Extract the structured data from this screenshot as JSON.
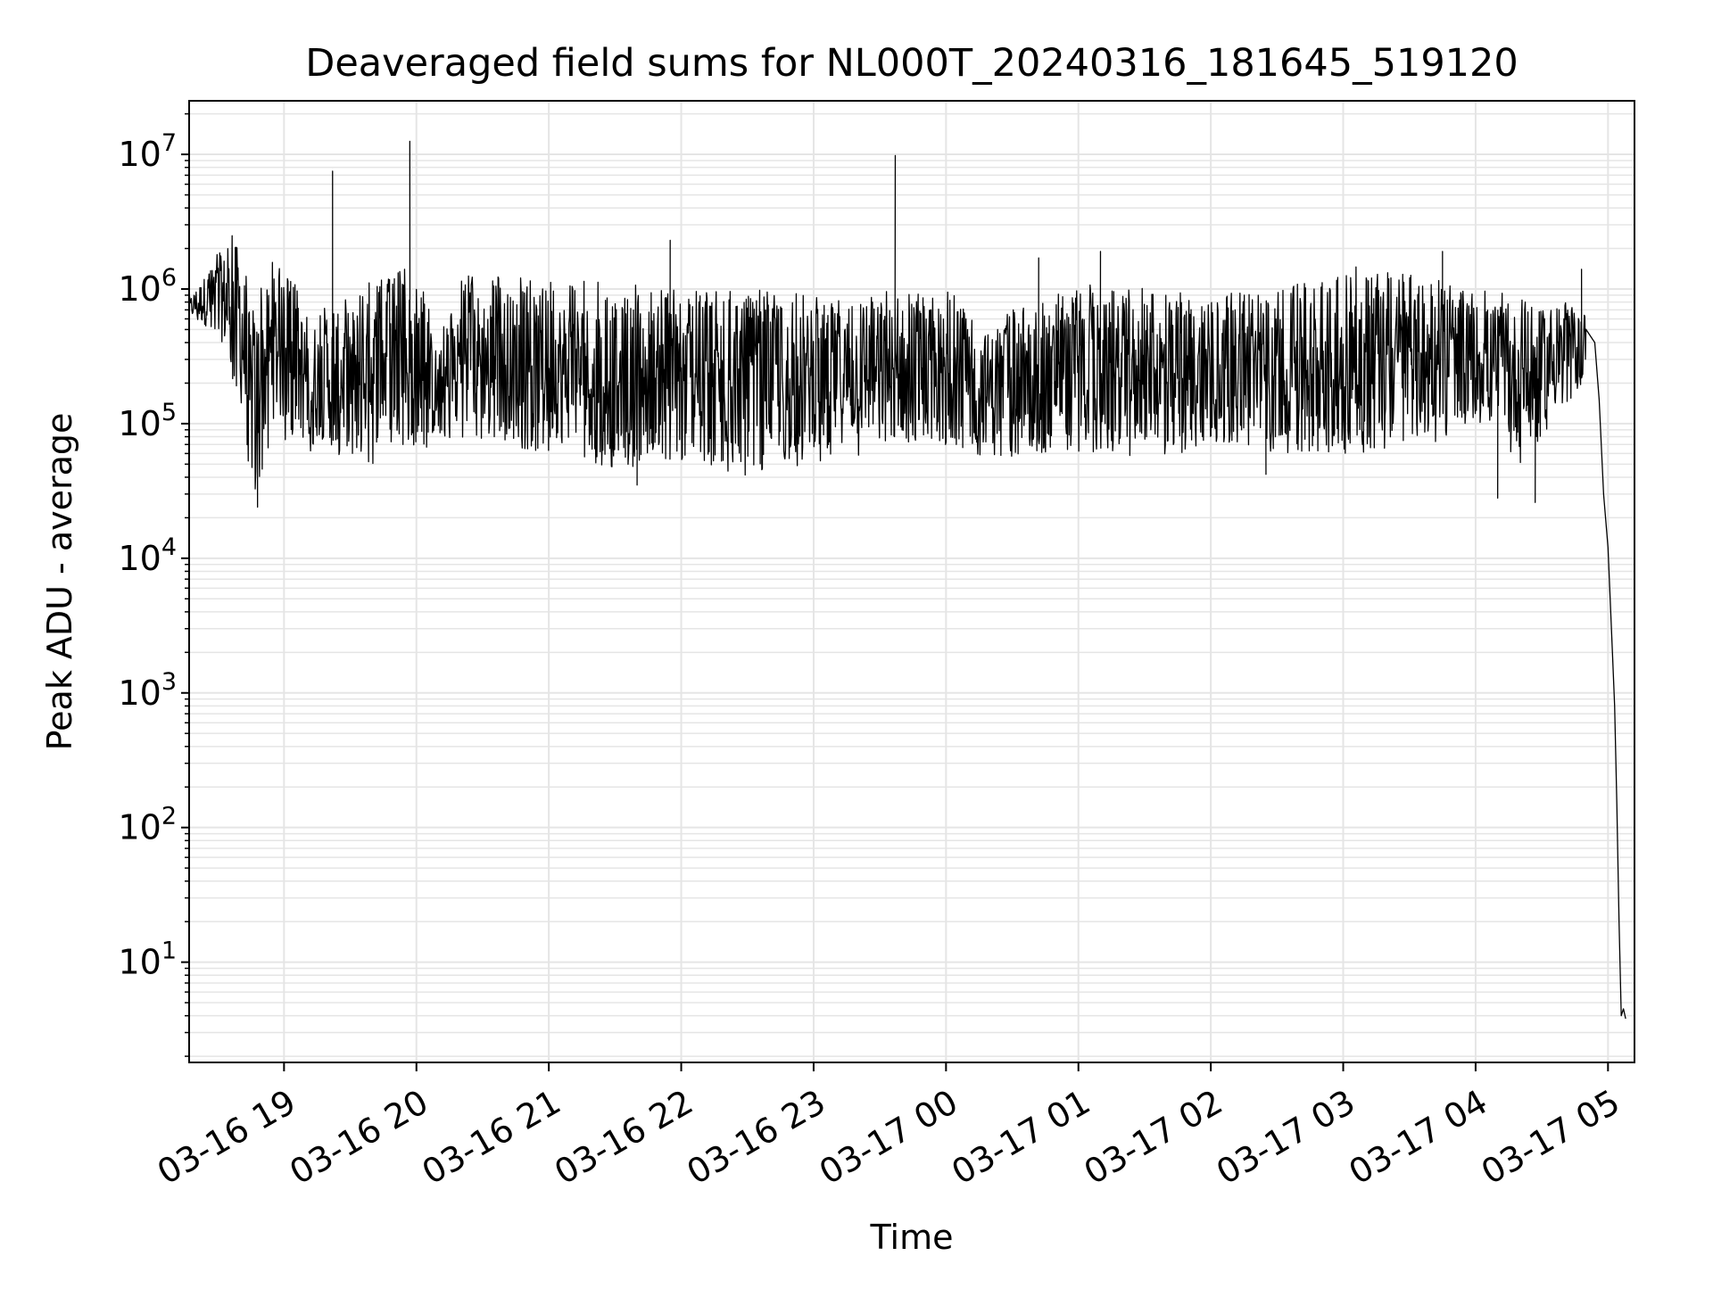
{
  "chart_data": {
    "type": "line",
    "title": "Deaveraged field sums for NL000T_20240316_181645_519120",
    "xlabel": "Time",
    "ylabel": "Peak ADU - average",
    "yscale": "log",
    "grid": true,
    "grid_minor": true,
    "legend": "none",
    "line_color": "#000000",
    "grid_color": "#e5e5e5",
    "xlim": [
      "2024-03-16 18:17",
      "2024-03-17 05:12"
    ],
    "ylim": [
      1.8,
      25000000
    ],
    "x_ticks": [
      {
        "value": "2024-03-16 19:00",
        "label": "03-16 19"
      },
      {
        "value": "2024-03-16 20:00",
        "label": "03-16 20"
      },
      {
        "value": "2024-03-16 21:00",
        "label": "03-16 21"
      },
      {
        "value": "2024-03-16 22:00",
        "label": "03-16 22"
      },
      {
        "value": "2024-03-16 23:00",
        "label": "03-16 23"
      },
      {
        "value": "2024-03-17 00:00",
        "label": "03-17 00"
      },
      {
        "value": "2024-03-17 01:00",
        "label": "03-17 01"
      },
      {
        "value": "2024-03-17 02:00",
        "label": "03-17 02"
      },
      {
        "value": "2024-03-17 03:00",
        "label": "03-17 03"
      },
      {
        "value": "2024-03-17 04:00",
        "label": "03-17 04"
      },
      {
        "value": "2024-03-17 05:00",
        "label": "03-17 05"
      }
    ],
    "y_ticks": [
      {
        "value": 10,
        "base": "10",
        "exp": "1"
      },
      {
        "value": 100,
        "base": "10",
        "exp": "2"
      },
      {
        "value": 1000,
        "base": "10",
        "exp": "3"
      },
      {
        "value": 10000,
        "base": "10",
        "exp": "4"
      },
      {
        "value": 100000,
        "base": "10",
        "exp": "5"
      },
      {
        "value": 1000000,
        "base": "10",
        "exp": "6"
      },
      {
        "value": 10000000,
        "base": "10",
        "exp": "7"
      }
    ],
    "series": [
      {
        "envelope": [
          {
            "x": "2024-03-16 18:17",
            "low": 600000,
            "high": 900000
          },
          {
            "x": "2024-03-16 18:30",
            "low": 400000,
            "high": 2000000
          },
          {
            "x": "2024-03-16 18:40",
            "low": 150000,
            "high": 3000000
          },
          {
            "x": "2024-03-16 18:45",
            "low": 25000,
            "high": 800000
          },
          {
            "x": "2024-03-16 18:55",
            "low": 80000,
            "high": 1700000
          },
          {
            "x": "2024-03-16 19:15",
            "low": 60000,
            "high": 700000
          },
          {
            "x": "2024-03-16 19:40",
            "low": 50000,
            "high": 1200000
          },
          {
            "x": "2024-03-16 20:00",
            "low": 70000,
            "high": 1500000
          },
          {
            "x": "2024-03-16 20:10",
            "low": 60000,
            "high": 400000
          },
          {
            "x": "2024-03-16 20:20",
            "low": 80000,
            "high": 1300000
          },
          {
            "x": "2024-03-16 21:00",
            "low": 60000,
            "high": 1200000
          },
          {
            "x": "2024-03-16 21:30",
            "low": 45000,
            "high": 1100000
          },
          {
            "x": "2024-03-16 22:00",
            "low": 50000,
            "high": 1000000
          },
          {
            "x": "2024-03-16 22:30",
            "low": 40000,
            "high": 1000000
          },
          {
            "x": "2024-03-16 23:00",
            "low": 50000,
            "high": 900000
          },
          {
            "x": "2024-03-16 23:30",
            "low": 60000,
            "high": 1000000
          },
          {
            "x": "2024-03-17 00:00",
            "low": 60000,
            "high": 1000000
          },
          {
            "x": "2024-03-17 00:20",
            "low": 55000,
            "high": 600000
          },
          {
            "x": "2024-03-17 01:00",
            "low": 60000,
            "high": 1100000
          },
          {
            "x": "2024-03-17 01:40",
            "low": 55000,
            "high": 1000000
          },
          {
            "x": "2024-03-17 02:00",
            "low": 70000,
            "high": 900000
          },
          {
            "x": "2024-03-17 02:30",
            "low": 60000,
            "high": 1000000
          },
          {
            "x": "2024-03-17 03:00",
            "low": 60000,
            "high": 1500000
          },
          {
            "x": "2024-03-17 03:30",
            "low": 60000,
            "high": 1300000
          },
          {
            "x": "2024-03-17 04:00",
            "low": 100000,
            "high": 1000000
          },
          {
            "x": "2024-03-17 04:20",
            "low": 50000,
            "high": 900000
          },
          {
            "x": "2024-03-17 04:50",
            "low": 200000,
            "high": 800000
          }
        ],
        "spikes": [
          {
            "x": "2024-03-16 19:22",
            "y": 7500000
          },
          {
            "x": "2024-03-16 19:57",
            "y": 12500000
          },
          {
            "x": "2024-03-16 21:55",
            "y": 2300000
          },
          {
            "x": "2024-03-16 23:37",
            "y": 9800000
          },
          {
            "x": "2024-03-17 00:42",
            "y": 1700000
          },
          {
            "x": "2024-03-17 01:10",
            "y": 1900000
          },
          {
            "x": "2024-03-17 03:45",
            "y": 1900000
          },
          {
            "x": "2024-03-17 04:48",
            "y": 1400000
          },
          {
            "x": "2024-03-16 18:48",
            "y": 24000
          },
          {
            "x": "2024-03-16 21:40",
            "y": 35000
          },
          {
            "x": "2024-03-17 02:25",
            "y": 42000
          },
          {
            "x": "2024-03-17 04:10",
            "y": 28000
          },
          {
            "x": "2024-03-17 04:27",
            "y": 26000
          }
        ],
        "tail": [
          {
            "x": "2024-03-17 04:54",
            "y": 400000
          },
          {
            "x": "2024-03-17 04:56",
            "y": 150000
          },
          {
            "x": "2024-03-17 04:58",
            "y": 30000
          },
          {
            "x": "2024-03-17 05:00",
            "y": 12000
          },
          {
            "x": "2024-03-17 05:02",
            "y": 2000
          },
          {
            "x": "2024-03-17 05:03",
            "y": 800
          },
          {
            "x": "2024-03-17 05:04",
            "y": 150
          },
          {
            "x": "2024-03-17 05:05",
            "y": 20
          },
          {
            "x": "2024-03-17 05:06",
            "y": 4
          },
          {
            "x": "2024-03-17 05:07",
            "y": 4.5
          },
          {
            "x": "2024-03-17 05:08",
            "y": 3.8
          }
        ]
      }
    ]
  }
}
